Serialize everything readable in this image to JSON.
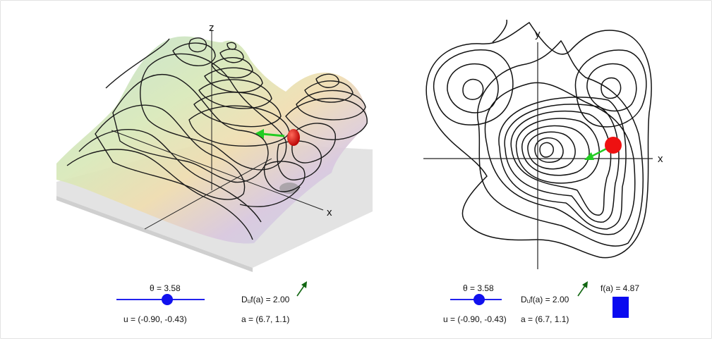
{
  "left": {
    "theta_label": "θ = 3.58",
    "u_label": "u = (-0.90, -0.43)",
    "du_label": "Dᵤf(a) = 2.00",
    "a_label": "a = (6.7, 1.1)",
    "axis_x": "x",
    "axis_z": "z",
    "theta_slider": 0.57
  },
  "right": {
    "theta_label": "θ = 3.58",
    "u_label": "u = (-0.90, -0.43)",
    "du_label": "Dᵤf(a) = 2.00",
    "a_label": "a = (6.7, 1.1)",
    "fa_label": "f(a) = 4.87",
    "axis_x": "x",
    "axis_y": "y",
    "theta_slider": 0.57
  },
  "colors": {
    "slider": "#2222ee",
    "point": "#ee1111",
    "gradient_arrow": "#22cc22",
    "direction_arrow": "#116611",
    "fa_bar": "#0a0af0"
  }
}
